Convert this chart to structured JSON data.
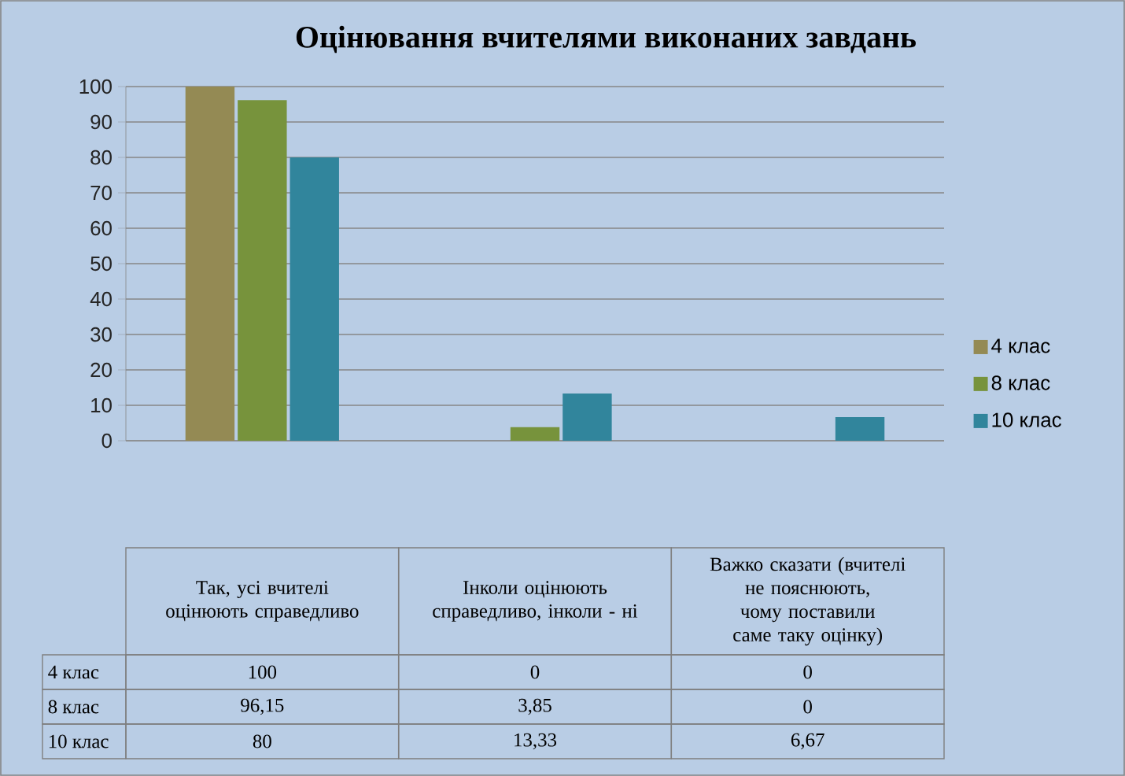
{
  "chart_data": {
    "type": "bar",
    "title": "Оцінювання вчителями виконаних завдань",
    "categories": [
      "Так, усі вчителі оцінюють справедливо",
      "Інколи оцінюють справедливо, інколи - ні",
      "Важко сказати (вчителі не пояснюють, чому поставили саме таку оцінку)"
    ],
    "series": [
      {
        "name": "4 клас",
        "color": "#948a54",
        "values": [
          100,
          0,
          0
        ],
        "value_labels": [
          "100",
          "0",
          "0"
        ]
      },
      {
        "name": "8 клас",
        "color": "#77933c",
        "values": [
          96.15,
          3.85,
          0
        ],
        "value_labels": [
          "96,15",
          "3,85",
          "0"
        ]
      },
      {
        "name": "10 клас",
        "color": "#31859c",
        "values": [
          80,
          13.33,
          6.67
        ],
        "value_labels": [
          "80",
          "13,33",
          "6,67"
        ]
      }
    ],
    "ylim": [
      0,
      100
    ],
    "yticks": [
      0,
      10,
      20,
      30,
      40,
      50,
      60,
      70,
      80,
      90,
      100
    ],
    "grid": "y",
    "legend": "right"
  }
}
